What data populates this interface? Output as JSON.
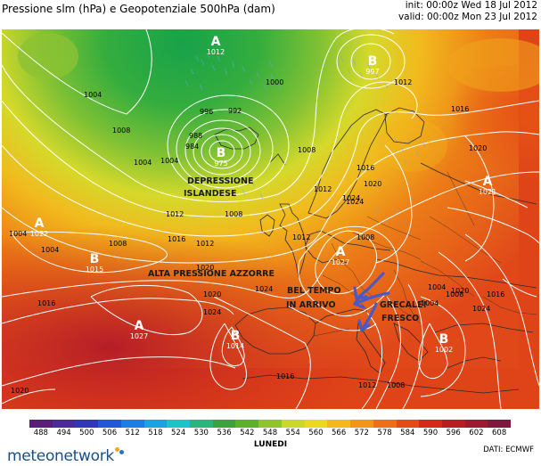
{
  "title": "Pressione slm (hPa) e Geopotenziale 500hPa (dam)",
  "run": {
    "init": "init: 00:00z Wed 18 Jul 2012",
    "valid": "valid: 00:00z Mon 23 Jul 2012"
  },
  "pressure_centers": [
    {
      "type": "A",
      "value": "1012"
    },
    {
      "type": "B",
      "value": "997"
    },
    {
      "type": "B",
      "value": "975"
    },
    {
      "type": "A",
      "value": "1022"
    },
    {
      "type": "B",
      "value": "1015"
    },
    {
      "type": "A",
      "value": "1027"
    },
    {
      "type": "A",
      "value": "1027"
    },
    {
      "type": "B",
      "value": "1014"
    },
    {
      "type": "A",
      "value": "1021"
    },
    {
      "type": "B",
      "value": "1002"
    }
  ],
  "isobar_labels": [
    "1004",
    "1008",
    "1000",
    "996",
    "992",
    "988",
    "984",
    "1004",
    "1008",
    "1012",
    "1016",
    "1020",
    "1024",
    "1004",
    "1012",
    "1016",
    "1020",
    "1008",
    "1012",
    "1016",
    "1020",
    "1024",
    "1004",
    "1004",
    "1008",
    "1012",
    "1016",
    "1024",
    "1024",
    "1020",
    "1016",
    "1012",
    "1008",
    "1004",
    "1020",
    "1008",
    "1004",
    "1016",
    "1012",
    "1008",
    "1020",
    "1024"
  ],
  "annotations": {
    "depression": [
      "DEPRESSIONE",
      "ISLANDESE"
    ],
    "anticyclone": "ALTA PRESSIONE AZZORRE",
    "bel_tempo": [
      "BEL TEMPO",
      "IN ARRIVO"
    ],
    "grecale": [
      "GRECALE!",
      "FRESCO"
    ]
  },
  "legend": {
    "ticks": [
      "488",
      "494",
      "500",
      "506",
      "512",
      "518",
      "524",
      "530",
      "536",
      "542",
      "548",
      "554",
      "560",
      "566",
      "572",
      "578",
      "584",
      "590",
      "596",
      "602",
      "608"
    ],
    "colors": [
      "#5a1d7a",
      "#4b2a9a",
      "#3037b8",
      "#2058d8",
      "#1a7ee6",
      "#19a3e2",
      "#1cc3c7",
      "#2ab57c",
      "#3ca23c",
      "#5bb22a",
      "#8fc52a",
      "#c9d82a",
      "#ecd81f",
      "#f4b81c",
      "#f29519",
      "#ee6f17",
      "#e44b15",
      "#d42a17",
      "#b81d22",
      "#9b1a30",
      "#7f183d"
    ],
    "day": "LUNEDI"
  },
  "brand": "meteonetwork",
  "source": "DATI: ECMWF",
  "colors": {
    "arrows": "#4a58c8",
    "isobars": "#ffffff",
    "coast": "#2a2a2a",
    "annotation_text": "#1a1a1a",
    "brand": "#1a4f86"
  }
}
